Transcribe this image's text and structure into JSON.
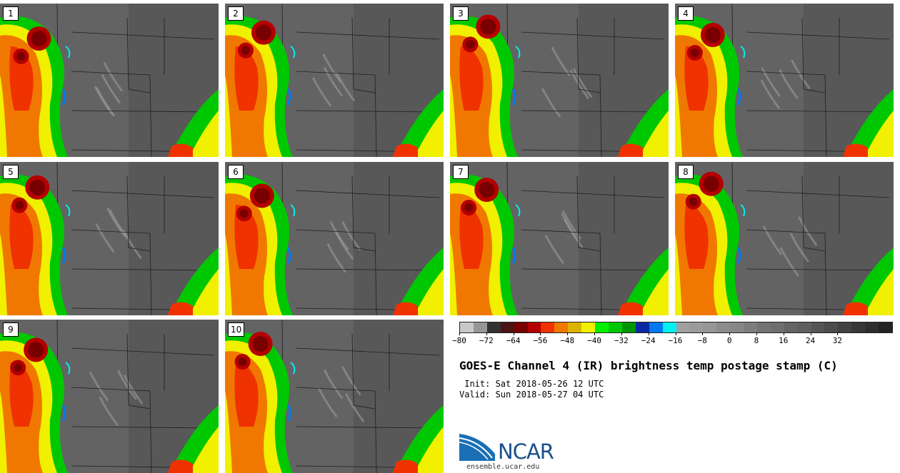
{
  "panels": [
    "1",
    "2",
    "3",
    "4",
    "5",
    "6",
    "7",
    "8",
    "9",
    "10"
  ],
  "colorbar": {
    "colors": [
      "#c8c8c8",
      "#969696",
      "#323232",
      "#4b1414",
      "#780000",
      "#b40000",
      "#f03200",
      "#f07800",
      "#dcb400",
      "#f0f000",
      "#00f000",
      "#00c800",
      "#009600",
      "#0a28a0",
      "#0078f0",
      "#00f0f0",
      "#a0a0a0",
      "#9b9b9b",
      "#969696",
      "#8c8c8c",
      "#878787",
      "#7d7d7d",
      "#737373",
      "#6e6e6e",
      "#646464",
      "#5f5f5f",
      "#555555",
      "#4b4b4b",
      "#414141",
      "#373737",
      "#2d2d2d",
      "#232323"
    ],
    "ticks": [
      "−80",
      "−72",
      "−64",
      "−56",
      "−48",
      "−40",
      "−32",
      "−24",
      "−16",
      "−8",
      "0",
      "8",
      "16",
      "24",
      "32"
    ]
  },
  "title": "GOES-E Channel 4 (IR) brightness temp postage stamp (C)",
  "init": " Init: Sat 2018-05-26 12 UTC",
  "valid": "Valid: Sun 2018-05-27 04 UTC",
  "logo": {
    "name": "NCAR",
    "url": "ensemble.ucar.edu"
  }
}
